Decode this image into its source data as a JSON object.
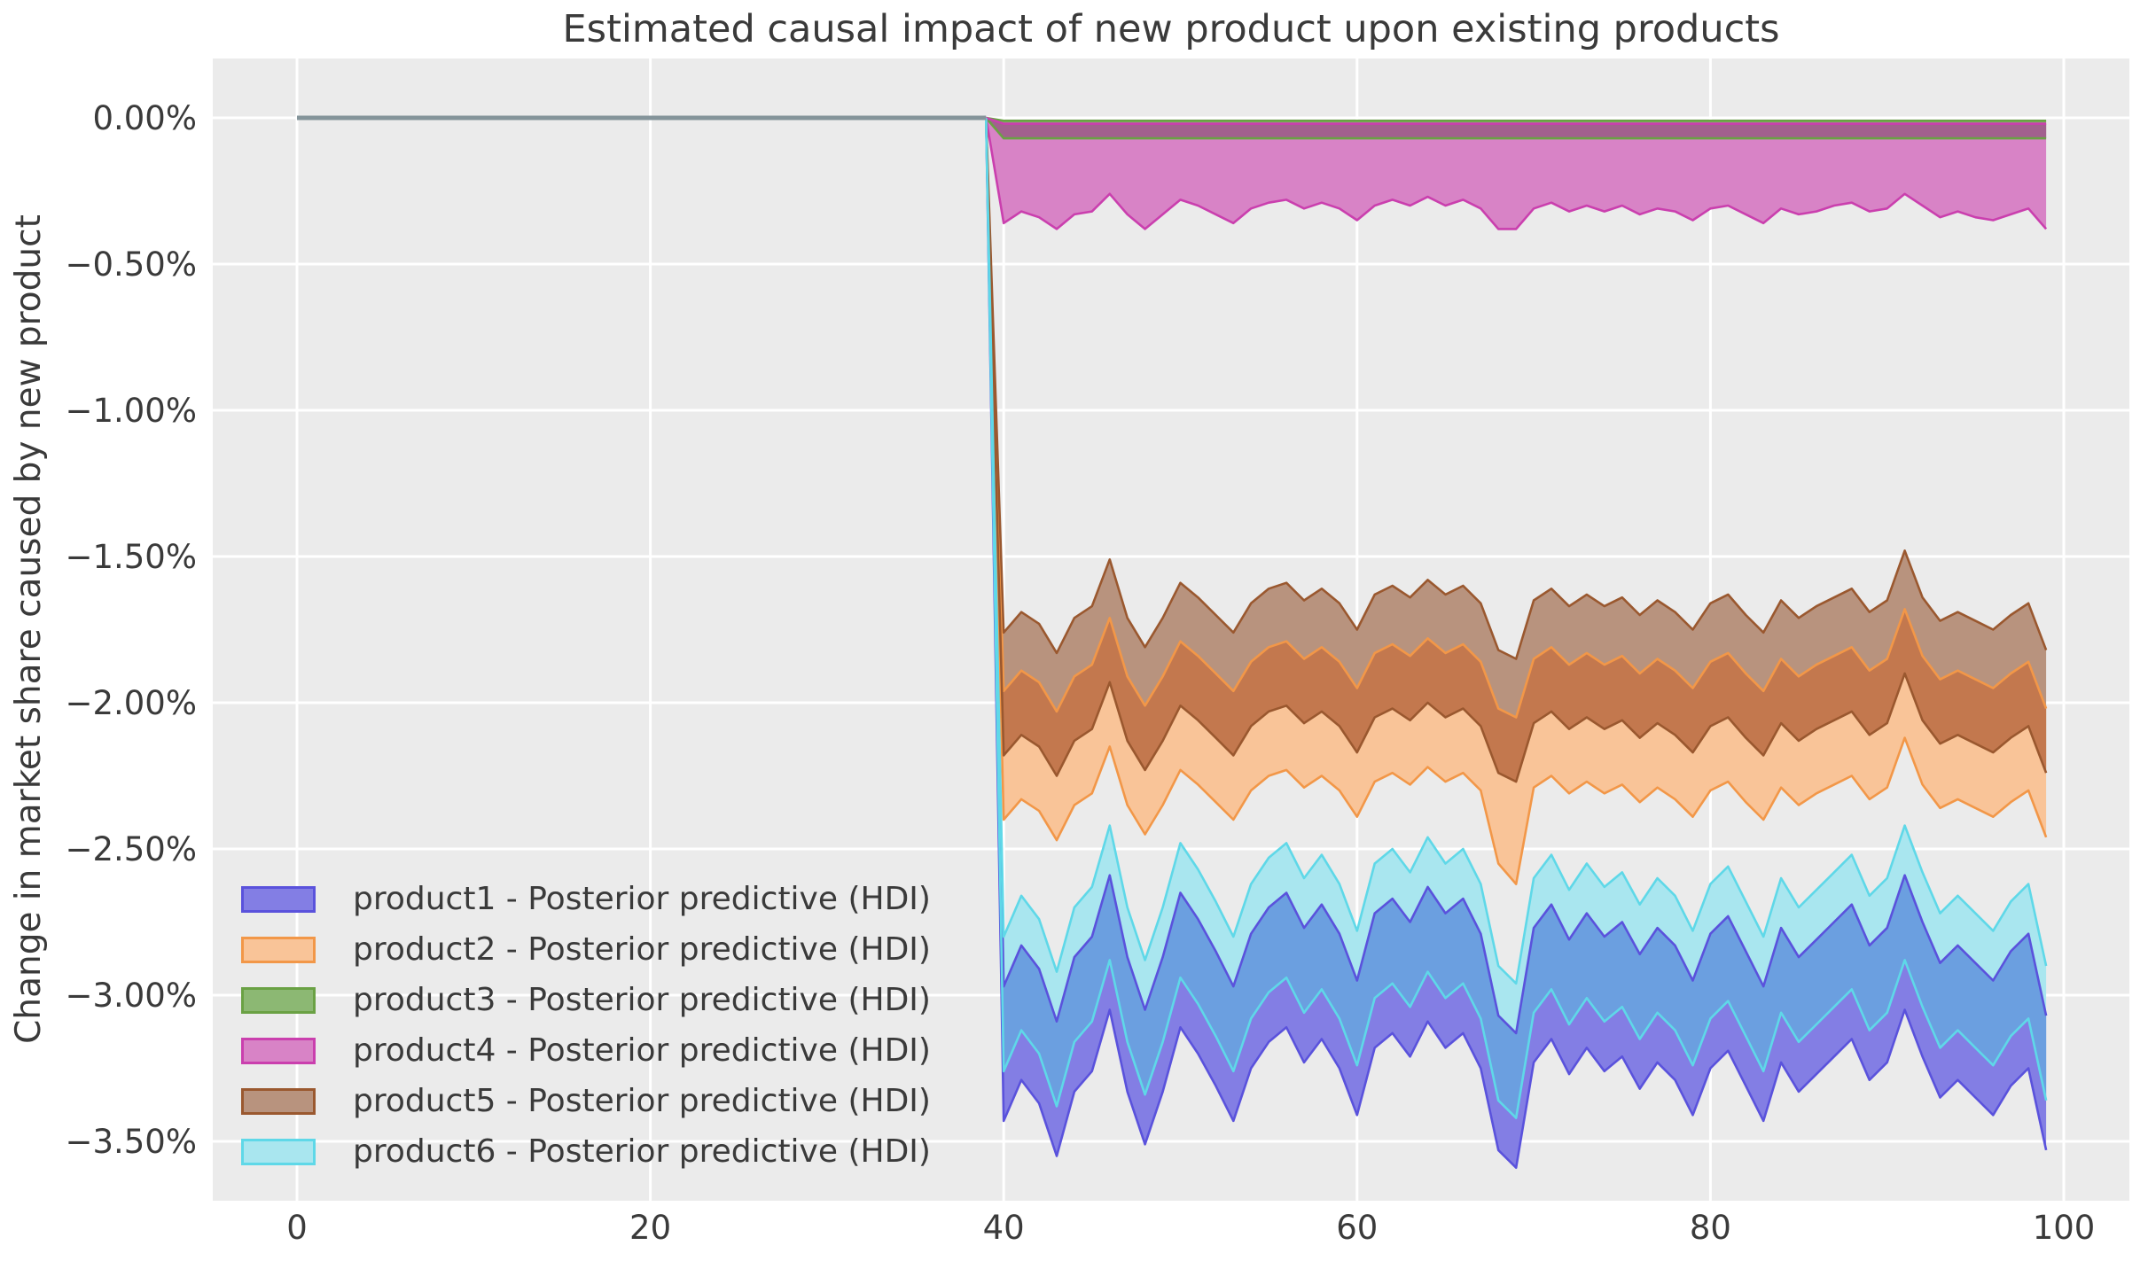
{
  "figure": {
    "background": "#ffffff",
    "axes_background": "#ebebeb",
    "grid_color": "#ffffff",
    "text_color": "#3a3a3a"
  },
  "legend": {
    "items": [
      {
        "label": "product1 - Posterior predictive (HDI)",
        "fill": "#837ee4",
        "stroke": "#5a52dc"
      },
      {
        "label": "product2 - Posterior predictive (HDI)",
        "fill": "#f9c498",
        "stroke": "#f29748"
      },
      {
        "label": "product3 - Posterior predictive (HDI)",
        "fill": "#8cb873",
        "stroke": "#6aa144"
      },
      {
        "label": "product4 - Posterior predictive (HDI)",
        "fill": "#d883c6",
        "stroke": "#ca3fae"
      },
      {
        "label": "product5 - Posterior predictive (HDI)",
        "fill": "#b8937e",
        "stroke": "#9a582f"
      },
      {
        "label": "product6 - Posterior predictive (HDI)",
        "fill": "#a9e6ef",
        "stroke": "#5fd8e8"
      }
    ]
  },
  "chart_data": {
    "type": "area",
    "title": "Estimated causal impact of new product upon existing products",
    "xlabel": "",
    "ylabel": "Change in market share caused by new product",
    "legend_position": "lower left",
    "grid": true,
    "xlim": [
      -4.8,
      103.7
    ],
    "ylim_pct": [
      -3.72,
      0.2
    ],
    "xticks": [
      0,
      20,
      40,
      60,
      80,
      100
    ],
    "ytick_values_pct": [
      0,
      -0.5,
      -1,
      -1.5,
      -2,
      -2.5,
      -3,
      -3.5
    ],
    "ytick_labels": [
      "0.00%",
      "−0.50%",
      "−1.00%",
      "−1.50%",
      "−2.00%",
      "−2.50%",
      "−3.00%",
      "−3.50%"
    ],
    "pre_period": {
      "x_start": 0,
      "x_end": 39,
      "value_pct": 0,
      "line_color": "#84949a"
    },
    "intervention_x": 40,
    "x_start": 40,
    "x_step": 1,
    "n_points": 60,
    "series": [
      {
        "name": "product1 - Posterior predictive (HDI)",
        "fill": "#837ee4",
        "stroke": "#5a52dc",
        "hi_pct": [
          -2.97,
          -2.83,
          -2.91,
          -3.09,
          -2.87,
          -2.8,
          -2.59,
          -2.87,
          -3.05,
          -2.87,
          -2.65,
          -2.74,
          -2.85,
          -2.97,
          -2.79,
          -2.7,
          -2.65,
          -2.77,
          -2.69,
          -2.79,
          -2.95,
          -2.72,
          -2.67,
          -2.75,
          -2.63,
          -2.72,
          -2.67,
          -2.79,
          -3.07,
          -3.13,
          -2.77,
          -2.69,
          -2.81,
          -2.72,
          -2.8,
          -2.75,
          -2.86,
          -2.77,
          -2.83,
          -2.95,
          -2.79,
          -2.73,
          -2.85,
          -2.97,
          -2.77,
          -2.87,
          -2.81,
          -2.75,
          -2.69,
          -2.83,
          -2.77,
          -2.59,
          -2.75,
          -2.89,
          -2.83,
          -2.89,
          -2.95,
          -2.85,
          -2.79,
          -3.07
        ],
        "lo_pct": [
          -3.43,
          -3.29,
          -3.37,
          -3.55,
          -3.33,
          -3.26,
          -3.05,
          -3.33,
          -3.51,
          -3.33,
          -3.11,
          -3.2,
          -3.31,
          -3.43,
          -3.25,
          -3.16,
          -3.11,
          -3.23,
          -3.15,
          -3.25,
          -3.41,
          -3.18,
          -3.13,
          -3.21,
          -3.09,
          -3.18,
          -3.13,
          -3.25,
          -3.53,
          -3.59,
          -3.23,
          -3.15,
          -3.27,
          -3.18,
          -3.26,
          -3.21,
          -3.32,
          -3.23,
          -3.29,
          -3.41,
          -3.25,
          -3.19,
          -3.31,
          -3.43,
          -3.23,
          -3.33,
          -3.27,
          -3.21,
          -3.15,
          -3.29,
          -3.23,
          -3.05,
          -3.21,
          -3.35,
          -3.29,
          -3.35,
          -3.41,
          -3.31,
          -3.25,
          -3.53
        ]
      },
      {
        "name": "product2 - Posterior predictive (HDI)",
        "fill": "#f9c498",
        "stroke": "#f29748",
        "hi_pct": [
          -1.96,
          -1.89,
          -1.93,
          -2.03,
          -1.91,
          -1.87,
          -1.71,
          -1.91,
          -2.01,
          -1.91,
          -1.79,
          -1.84,
          -1.9,
          -1.96,
          -1.86,
          -1.81,
          -1.79,
          -1.85,
          -1.81,
          -1.86,
          -1.95,
          -1.83,
          -1.8,
          -1.84,
          -1.78,
          -1.83,
          -1.8,
          -1.86,
          -2.02,
          -2.05,
          -1.85,
          -1.81,
          -1.87,
          -1.83,
          -1.87,
          -1.84,
          -1.9,
          -1.85,
          -1.89,
          -1.95,
          -1.86,
          -1.83,
          -1.9,
          -1.96,
          -1.85,
          -1.91,
          -1.87,
          -1.84,
          -1.81,
          -1.89,
          -1.85,
          -1.68,
          -1.84,
          -1.92,
          -1.89,
          -1.92,
          -1.95,
          -1.9,
          -1.86,
          -2.02
        ],
        "lo_pct": [
          -2.4,
          -2.33,
          -2.37,
          -2.47,
          -2.35,
          -2.31,
          -2.15,
          -2.35,
          -2.45,
          -2.35,
          -2.23,
          -2.28,
          -2.34,
          -2.4,
          -2.3,
          -2.25,
          -2.23,
          -2.29,
          -2.25,
          -2.3,
          -2.39,
          -2.27,
          -2.24,
          -2.28,
          -2.22,
          -2.27,
          -2.24,
          -2.3,
          -2.55,
          -2.62,
          -2.29,
          -2.25,
          -2.31,
          -2.27,
          -2.31,
          -2.28,
          -2.34,
          -2.29,
          -2.33,
          -2.39,
          -2.3,
          -2.27,
          -2.34,
          -2.4,
          -2.29,
          -2.35,
          -2.31,
          -2.28,
          -2.25,
          -2.33,
          -2.29,
          -2.12,
          -2.28,
          -2.36,
          -2.33,
          -2.36,
          -2.39,
          -2.34,
          -2.3,
          -2.46
        ]
      },
      {
        "name": "product3 - Posterior predictive (HDI)",
        "fill": "#8cb873",
        "stroke": "#6aa144",
        "hi_pct": -0.01,
        "lo_pct": -0.07
      },
      {
        "name": "product4 - Posterior predictive (HDI)",
        "fill": "#d883c6",
        "stroke": "#ca3fae",
        "hi_pct": -0.02,
        "lo_pct": [
          -0.36,
          -0.32,
          -0.34,
          -0.38,
          -0.33,
          -0.32,
          -0.26,
          -0.33,
          -0.38,
          -0.33,
          -0.28,
          -0.3,
          -0.33,
          -0.36,
          -0.31,
          -0.29,
          -0.28,
          -0.31,
          -0.29,
          -0.31,
          -0.35,
          -0.3,
          -0.28,
          -0.3,
          -0.27,
          -0.3,
          -0.28,
          -0.31,
          -0.38,
          -0.38,
          -0.31,
          -0.29,
          -0.32,
          -0.3,
          -0.32,
          -0.3,
          -0.33,
          -0.31,
          -0.32,
          -0.35,
          -0.31,
          -0.3,
          -0.33,
          -0.36,
          -0.31,
          -0.33,
          -0.32,
          -0.3,
          -0.29,
          -0.32,
          -0.31,
          -0.26,
          -0.3,
          -0.34,
          -0.32,
          -0.34,
          -0.35,
          -0.33,
          -0.31,
          -0.38
        ]
      },
      {
        "name": "product5 - Posterior predictive (HDI)",
        "fill": "#b8937e",
        "stroke": "#9a582f",
        "hi_pct": [
          -1.76,
          -1.69,
          -1.73,
          -1.83,
          -1.71,
          -1.67,
          -1.51,
          -1.71,
          -1.81,
          -1.71,
          -1.59,
          -1.64,
          -1.7,
          -1.76,
          -1.66,
          -1.61,
          -1.59,
          -1.65,
          -1.61,
          -1.66,
          -1.75,
          -1.63,
          -1.6,
          -1.64,
          -1.58,
          -1.63,
          -1.6,
          -1.66,
          -1.82,
          -1.85,
          -1.65,
          -1.61,
          -1.67,
          -1.63,
          -1.67,
          -1.64,
          -1.7,
          -1.65,
          -1.69,
          -1.75,
          -1.66,
          -1.63,
          -1.7,
          -1.76,
          -1.65,
          -1.71,
          -1.67,
          -1.64,
          -1.61,
          -1.69,
          -1.65,
          -1.48,
          -1.64,
          -1.72,
          -1.69,
          -1.72,
          -1.75,
          -1.7,
          -1.66,
          -1.82
        ],
        "lo_pct": [
          -2.18,
          -2.11,
          -2.15,
          -2.25,
          -2.13,
          -2.09,
          -1.93,
          -2.13,
          -2.23,
          -2.13,
          -2.01,
          -2.06,
          -2.12,
          -2.18,
          -2.08,
          -2.03,
          -2.01,
          -2.07,
          -2.03,
          -2.08,
          -2.17,
          -2.05,
          -2.02,
          -2.06,
          -2.0,
          -2.05,
          -2.02,
          -2.08,
          -2.24,
          -2.27,
          -2.07,
          -2.03,
          -2.09,
          -2.05,
          -2.09,
          -2.06,
          -2.12,
          -2.07,
          -2.11,
          -2.17,
          -2.08,
          -2.05,
          -2.12,
          -2.18,
          -2.07,
          -2.13,
          -2.09,
          -2.06,
          -2.03,
          -2.11,
          -2.07,
          -1.9,
          -2.06,
          -2.14,
          -2.11,
          -2.14,
          -2.17,
          -2.12,
          -2.08,
          -2.24
        ]
      },
      {
        "name": "product6 - Posterior predictive (HDI)",
        "fill": "#a9e6ef",
        "stroke": "#5fd8e8",
        "hi_pct": [
          -2.8,
          -2.66,
          -2.74,
          -2.92,
          -2.7,
          -2.63,
          -2.42,
          -2.7,
          -2.88,
          -2.7,
          -2.48,
          -2.57,
          -2.68,
          -2.8,
          -2.62,
          -2.53,
          -2.48,
          -2.6,
          -2.52,
          -2.62,
          -2.78,
          -2.55,
          -2.5,
          -2.58,
          -2.46,
          -2.55,
          -2.5,
          -2.62,
          -2.9,
          -2.96,
          -2.6,
          -2.52,
          -2.64,
          -2.55,
          -2.63,
          -2.58,
          -2.69,
          -2.6,
          -2.66,
          -2.78,
          -2.62,
          -2.56,
          -2.68,
          -2.8,
          -2.6,
          -2.7,
          -2.64,
          -2.58,
          -2.52,
          -2.66,
          -2.6,
          -2.42,
          -2.58,
          -2.72,
          -2.66,
          -2.72,
          -2.78,
          -2.68,
          -2.62,
          -2.9
        ],
        "lo_pct": [
          -3.26,
          -3.12,
          -3.2,
          -3.38,
          -3.16,
          -3.09,
          -2.88,
          -3.16,
          -3.34,
          -3.16,
          -2.94,
          -3.03,
          -3.14,
          -3.26,
          -3.08,
          -2.99,
          -2.94,
          -3.06,
          -2.98,
          -3.08,
          -3.24,
          -3.01,
          -2.96,
          -3.04,
          -2.92,
          -3.01,
          -2.96,
          -3.08,
          -3.36,
          -3.42,
          -3.06,
          -2.98,
          -3.1,
          -3.01,
          -3.09,
          -3.04,
          -3.15,
          -3.06,
          -3.12,
          -3.24,
          -3.08,
          -3.02,
          -3.14,
          -3.26,
          -3.06,
          -3.16,
          -3.1,
          -3.04,
          -2.98,
          -3.12,
          -3.06,
          -2.88,
          -3.04,
          -3.18,
          -3.12,
          -3.18,
          -3.24,
          -3.14,
          -3.08,
          -3.36
        ]
      }
    ],
    "overlaps": [
      {
        "lower_band": 0,
        "upper_band": 5,
        "fill": "#6b9fe0"
      },
      {
        "lower_band": 1,
        "upper_band": 4,
        "fill": "#c3784e"
      },
      {
        "lower_band": 3,
        "upper_band": 2,
        "fill": "#a2608e"
      }
    ]
  }
}
